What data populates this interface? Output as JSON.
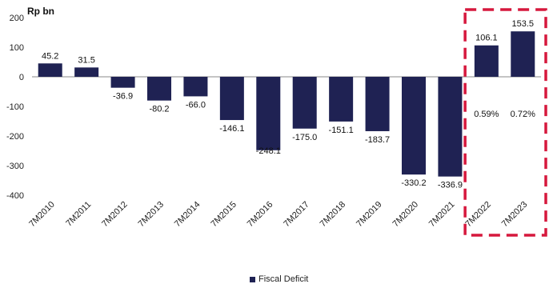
{
  "chart_data": {
    "type": "bar",
    "unit_label": "Rp bn",
    "categories": [
      "7M2010",
      "7M2011",
      "7M2012",
      "7M2013",
      "7M2014",
      "7M2015",
      "7M2016",
      "7M2017",
      "7M2018",
      "7M2019",
      "7M2020",
      "7M2021",
      "7M2022",
      "7M2023"
    ],
    "series": [
      {
        "name": "Fiscal Deficit",
        "values": [
          45.2,
          31.5,
          -36.9,
          -80.2,
          -66.0,
          -146.1,
          -248.1,
          -175.0,
          -151.1,
          -183.7,
          -330.2,
          -336.9,
          106.1,
          153.5
        ],
        "labels": [
          "45.2",
          "31.5",
          "-36.9",
          "-80.2",
          "-66.0",
          "-146.1",
          "-248.1",
          "-175.0",
          "-151.1",
          "-183.7",
          "-330.2",
          "-336.9",
          "106.1",
          "153.5"
        ]
      }
    ],
    "annotations": [
      {
        "category": "7M2022",
        "text": "0.59%"
      },
      {
        "category": "7M2023",
        "text": "0.72%"
      }
    ],
    "highlight_categories": [
      "7M2022",
      "7M2023"
    ],
    "yticks": [
      "200",
      "100",
      "0",
      "-100",
      "-200",
      "-300",
      "-400"
    ],
    "ylim": [
      -400,
      200
    ],
    "legend_position": "bottom-center",
    "bar_color": "#1f2253",
    "highlight_color": "#d6183d"
  }
}
